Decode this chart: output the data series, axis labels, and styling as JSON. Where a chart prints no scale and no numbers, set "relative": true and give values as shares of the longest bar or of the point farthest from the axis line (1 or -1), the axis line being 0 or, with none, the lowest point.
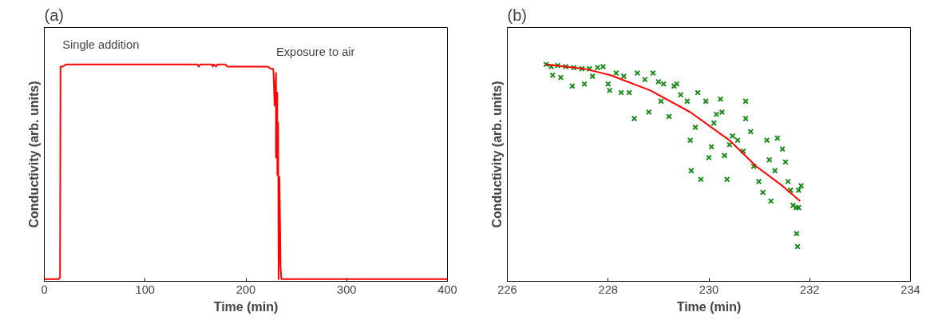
{
  "chart_data": [
    {
      "type": "line",
      "title": "(a)",
      "xlabel": "Time (min)",
      "ylabel": "Conductivity (arb. units)",
      "relative": true,
      "xlim": [
        0,
        400
      ],
      "xticks": [
        0,
        100,
        200,
        300,
        400
      ],
      "annotations": [
        "Single addition",
        "Exposure to air"
      ],
      "series": [
        {
          "color": "#ff0000",
          "x": [
            0,
            14.3,
            15.6,
            16.1,
            18.3,
            21.7,
            151.9,
            153.2,
            154.5,
            166.4,
            167.2,
            168.3,
            170.4,
            171.7,
            179.6,
            181.5,
            221.9,
            224.6,
            227.2,
            228.6,
            229.9,
            229.9,
            231.2,
            231.2,
            232,
            232.5,
            233.3,
            234.4,
            235.2,
            292,
            400
          ],
          "values": [
            0.01,
            0.01,
            0.02,
            0.99,
            0.99,
            1.0,
            1.0,
            0.99,
            1.0,
            1.0,
            0.99,
            1.0,
            0.99,
            1.0,
            1.0,
            0.99,
            0.99,
            0.98,
            0.98,
            0.81,
            0.96,
            0.57,
            0.87,
            0.49,
            0.73,
            0.01,
            0.48,
            0.07,
            0.01,
            0.01,
            0.01
          ]
        }
      ]
    },
    {
      "type": "scatter",
      "title": "(b)",
      "xlabel": "Time (min)",
      "ylabel": "Conductivity (arb. units)",
      "relative": true,
      "xlim": [
        226,
        234
      ],
      "xticks": [
        226,
        228,
        230,
        232,
        234
      ],
      "series": [
        {
          "color": "#1a8a1a",
          "marker": "cross",
          "x": [
            226.77,
            226.87,
            227.0,
            227.16,
            227.32,
            227.48,
            227.63,
            227.79,
            227.9,
            226.9,
            227.06,
            227.29,
            227.53,
            227.69,
            228.0,
            228.03,
            228.16,
            228.31,
            228.26,
            228.42,
            228.52,
            228.58,
            228.73,
            228.81,
            228.89,
            229.0,
            229.05,
            229.1,
            229.21,
            229.31,
            229.36,
            229.44,
            229.57,
            229.63,
            229.65,
            229.73,
            229.78,
            229.84,
            229.94,
            230.0,
            230.05,
            230.1,
            230.15,
            230.23,
            230.26,
            230.31,
            230.36,
            230.41,
            230.47,
            230.57,
            230.68,
            230.73,
            230.73,
            230.83,
            230.89,
            230.99,
            231.07,
            231.15,
            231.2,
            231.23,
            231.31,
            231.36,
            231.46,
            231.52,
            231.57,
            231.62,
            231.67,
            231.73,
            231.78,
            231.83,
            231.78,
            231.74,
            231.76
          ],
          "values": [
            1.0,
            0.99,
            0.995,
            0.99,
            0.985,
            0.98,
            0.98,
            0.985,
            0.99,
            0.95,
            0.94,
            0.9,
            0.91,
            0.945,
            0.91,
            0.88,
            0.96,
            0.945,
            0.87,
            0.87,
            0.75,
            0.96,
            0.93,
            0.78,
            0.96,
            0.92,
            0.83,
            0.91,
            0.76,
            0.9,
            0.91,
            0.86,
            0.83,
            0.65,
            0.51,
            0.71,
            0.87,
            0.47,
            0.83,
            0.57,
            0.62,
            0.73,
            0.77,
            0.84,
            0.78,
            0.58,
            0.47,
            0.63,
            0.67,
            0.65,
            0.6,
            0.83,
            0.75,
            0.69,
            0.53,
            0.46,
            0.41,
            0.65,
            0.56,
            0.37,
            0.51,
            0.66,
            0.61,
            0.55,
            0.46,
            0.42,
            0.35,
            0.34,
            0.42,
            0.44,
            0.34,
            0.22,
            0.16
          ]
        },
        {
          "type": "line",
          "color": "#ff0000",
          "x": [
            226.77,
            227.53,
            228.05,
            228.84,
            229.63,
            230.41,
            230.94,
            231.46,
            231.81
          ],
          "values": [
            1.0,
            0.98,
            0.95,
            0.88,
            0.78,
            0.65,
            0.53,
            0.44,
            0.37
          ]
        }
      ]
    }
  ]
}
